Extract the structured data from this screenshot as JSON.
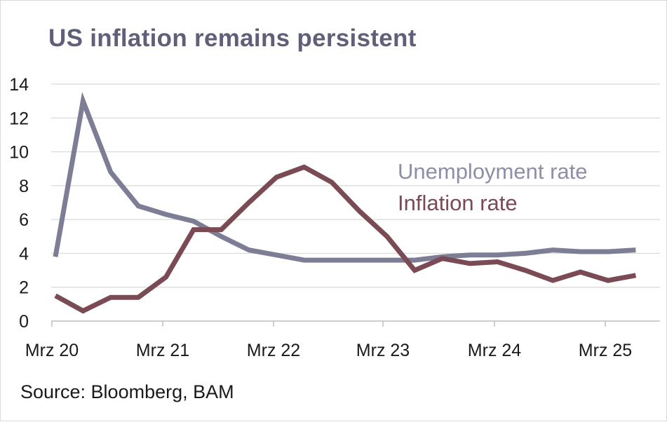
{
  "title": "US inflation remains persistent",
  "source": "Source: Bloomberg, BAM",
  "chart_data": {
    "type": "line",
    "title": "US inflation remains persistent",
    "xlabel": "",
    "ylabel": "",
    "ylim": [
      0,
      14
    ],
    "yticks": [
      0,
      2,
      4,
      6,
      8,
      10,
      12,
      14
    ],
    "x": [
      "2020-03",
      "2020-06",
      "2020-09",
      "2020-12",
      "2021-03",
      "2021-06",
      "2021-09",
      "2021-12",
      "2022-03",
      "2022-06",
      "2022-09",
      "2022-12",
      "2023-03",
      "2023-06",
      "2023-09",
      "2023-12",
      "2024-03",
      "2024-06",
      "2024-09",
      "2024-12",
      "2025-03",
      "2025-06"
    ],
    "xtick_labels": [
      "Mrz 20",
      "Mrz 21",
      "Mrz 22",
      "Mrz 23",
      "Mrz 24",
      "Mrz 25"
    ],
    "xtick_positions": [
      "2020-03",
      "2021-03",
      "2022-03",
      "2023-03",
      "2024-03",
      "2025-03"
    ],
    "grid": "horizontal",
    "legend": "center-right",
    "series": [
      {
        "name": "Unemployment rate",
        "color": "#7d7d96",
        "values": [
          3.8,
          13.0,
          8.8,
          6.8,
          6.3,
          5.9,
          5.0,
          4.2,
          3.9,
          3.6,
          3.6,
          3.6,
          3.6,
          3.6,
          3.8,
          3.9,
          3.9,
          4.0,
          4.2,
          4.1,
          4.1,
          4.2
        ]
      },
      {
        "name": "Inflation rate",
        "color": "#7a4a55",
        "values": [
          1.5,
          0.6,
          1.4,
          1.4,
          2.6,
          5.4,
          5.4,
          7.0,
          8.5,
          9.1,
          8.2,
          6.5,
          5.0,
          3.0,
          3.7,
          3.4,
          3.5,
          3.0,
          2.4,
          2.9,
          2.4,
          2.7
        ]
      }
    ]
  }
}
